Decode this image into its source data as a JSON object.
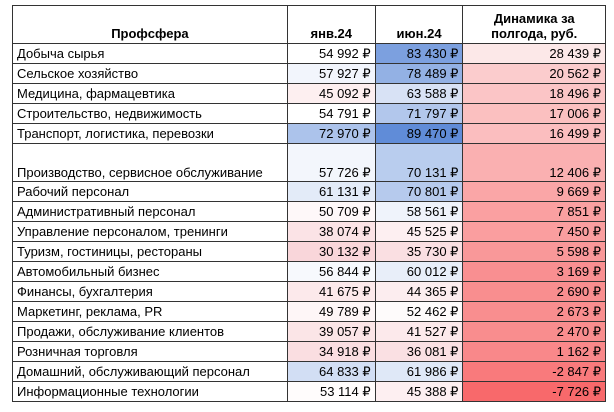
{
  "table": {
    "header": [
      "Профсфера",
      "янв.24",
      "июн.24",
      "Динамика за полгода, руб."
    ],
    "rows": [
      [
        "Добыча сырья",
        "54 992 ₽",
        "83 430 ₽",
        "28 439 ₽"
      ],
      [
        "Сельское хозяйство",
        "57 927 ₽",
        "78 489 ₽",
        "20 562 ₽"
      ],
      [
        "Медицина, фармацевтика",
        "45 092 ₽",
        "63 588 ₽",
        "18 496 ₽"
      ],
      [
        "Строительство, недвижимость",
        "54 791 ₽",
        "71 797 ₽",
        "17 006 ₽"
      ],
      [
        "Транспорт, логистика, перевозки",
        "72 970 ₽",
        "89 470 ₽",
        "16 499 ₽"
      ],
      [
        "Производство, сервисное обслуживание",
        "57 726 ₽",
        "70 131 ₽",
        "12 406 ₽"
      ],
      [
        "Рабочий персонал",
        "61 131 ₽",
        "70 801 ₽",
        "9 669 ₽"
      ],
      [
        "Административный персонал",
        "50 709 ₽",
        "58 561 ₽",
        "7 851 ₽"
      ],
      [
        "Управление персоналом, тренинги",
        "38 074 ₽",
        "45 525 ₽",
        "7 450 ₽"
      ],
      [
        "Туризм, гостиницы, рестораны",
        "30 132 ₽",
        "35 730 ₽",
        "5 598 ₽"
      ],
      [
        "Автомобильный бизнес",
        "56 844 ₽",
        "60 012 ₽",
        "3 169 ₽"
      ],
      [
        "Финансы, бухгалтерия",
        "41 675 ₽",
        "44 365 ₽",
        "2 690 ₽"
      ],
      [
        "Маркетинг, реклама, PR",
        "49 789 ₽",
        "52 462 ₽",
        "2 673 ₽"
      ],
      [
        "Продажи, обслуживание клиентов",
        "39 057 ₽",
        "41 527 ₽",
        "2 470 ₽"
      ],
      [
        "Розничная торговля",
        "34 918 ₽",
        "36 081 ₽",
        "1 162 ₽"
      ],
      [
        "Домашний, обслуживающий персонал",
        "64 833 ₽",
        "61 986 ₽",
        "-2 847 ₽"
      ],
      [
        "Информационные технологии",
        "53 114 ₽",
        "45 388 ₽",
        "-7 726 ₽"
      ]
    ]
  }
}
